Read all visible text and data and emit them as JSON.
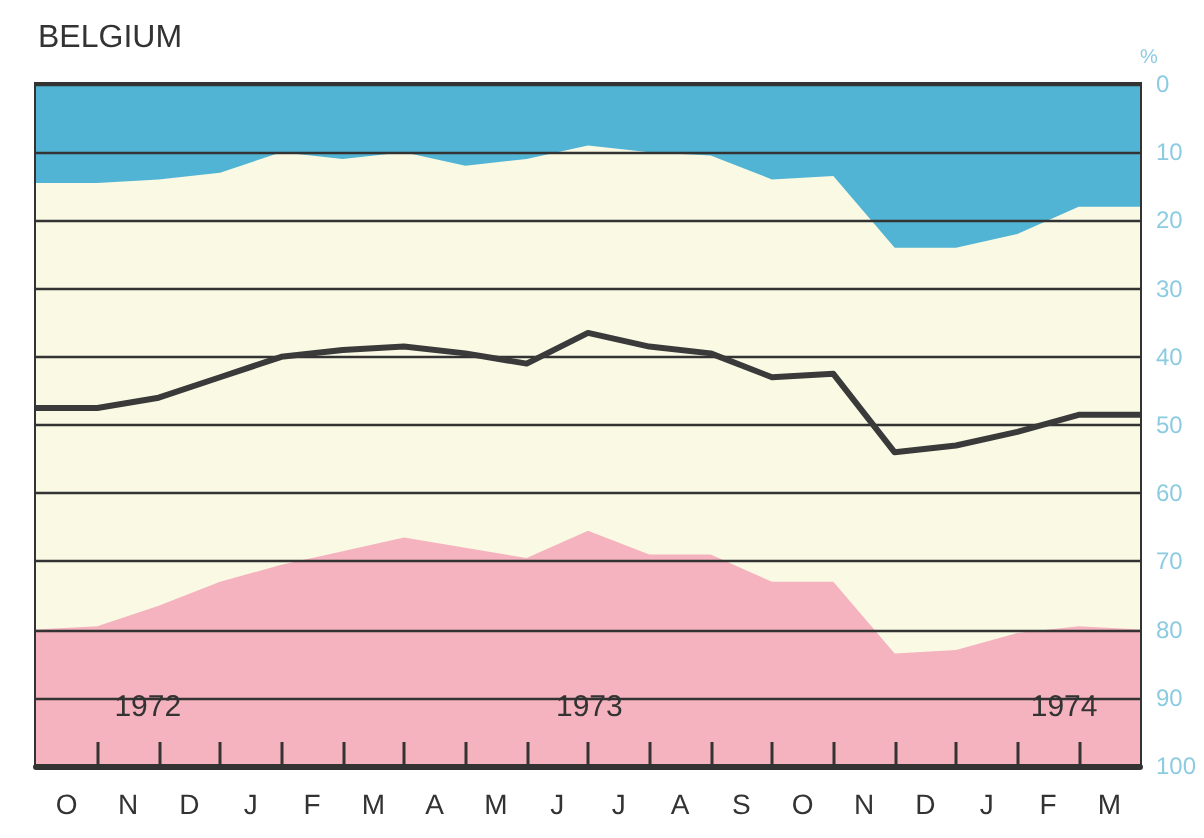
{
  "chart_data": {
    "type": "area",
    "title": "BELGIUM",
    "ylabel": "%",
    "stacked": true,
    "grid": "y",
    "categories": [
      null,
      "O",
      null,
      "N",
      null,
      "D",
      null,
      "J",
      null,
      "F",
      null,
      "M",
      null,
      "A",
      null,
      "M",
      null,
      "J",
      null,
      "J",
      null,
      "A",
      null,
      "S",
      null,
      "O",
      null,
      "N",
      null,
      "D",
      null,
      "J",
      null,
      "F",
      null,
      "M",
      null
    ],
    "series": [
      {
        "color": "#52b4d4",
        "values": [
          14.5,
          null,
          14.5,
          null,
          14,
          null,
          13,
          null,
          10,
          null,
          11,
          null,
          10,
          null,
          12,
          null,
          11,
          null,
          9,
          null,
          10,
          null,
          10.5,
          null,
          14,
          null,
          13.5,
          null,
          24,
          null,
          24,
          null,
          22,
          null,
          18,
          null,
          18
        ]
      },
      {
        "color": "#fafae4",
        "values": [
          65.5,
          null,
          65,
          null,
          62.5,
          null,
          60,
          null,
          60.5,
          null,
          57.5,
          null,
          56.5,
          null,
          56,
          null,
          58.5,
          null,
          56.5,
          null,
          59,
          null,
          58.5,
          null,
          59,
          null,
          59.5,
          null,
          59.5,
          null,
          59,
          null,
          58.5,
          null,
          61.5,
          null,
          62
        ]
      },
      {
        "color": "#f5b3bf",
        "values": [
          20,
          null,
          20.5,
          null,
          23.5,
          null,
          27,
          null,
          29.5,
          null,
          31.5,
          null,
          33.5,
          null,
          32,
          null,
          30.5,
          null,
          34.5,
          null,
          31,
          null,
          31,
          null,
          27,
          null,
          27,
          null,
          16.5,
          null,
          17,
          null,
          19.5,
          null,
          20.5,
          null,
          20
        ]
      },
      {
        "type": "line",
        "color": "#3a3a3a",
        "values": [
          47.5,
          null,
          47.5,
          null,
          46,
          null,
          43,
          null,
          40,
          null,
          39,
          null,
          38.5,
          null,
          39.5,
          null,
          41,
          null,
          36.5,
          null,
          38.5,
          null,
          39.5,
          null,
          43,
          null,
          42.5,
          null,
          54,
          null,
          53,
          null,
          51,
          null,
          48.5,
          null,
          48.5
        ]
      }
    ],
    "ylim": [
      100,
      0
    ],
    "yticks": [
      0,
      10,
      20,
      30,
      40,
      50,
      60,
      70,
      80,
      90,
      100
    ],
    "annotations": [
      "1972",
      "1973",
      "1974"
    ]
  }
}
